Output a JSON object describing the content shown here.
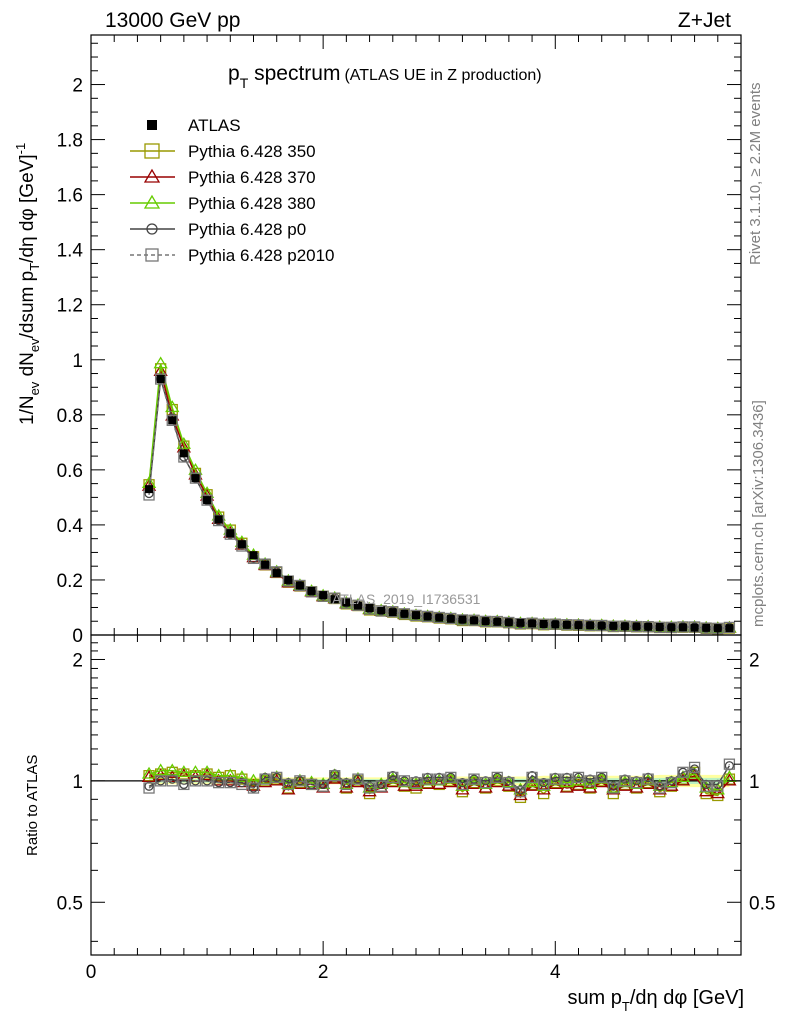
{
  "header": {
    "left": "13000 GeV pp",
    "right": "Z+Jet"
  },
  "side_labels": {
    "rivet": "Rivet 3.1.10, ≥ 2.2M events",
    "mcplots": "mcplots.cern.ch [arXiv:1306.3436]"
  },
  "watermark": "ATLAS_2019_I1736531",
  "chart_data": [
    {
      "type": "line",
      "title_main": "p",
      "title_sub": "T",
      "title_rest": " spectrum",
      "title_note": "(ATLAS UE in Z production)",
      "ylabel": "1/N_ev dN_ev/dsum p_T/dη dφ [GeV]^-1",
      "ylabel_parts": [
        "1/N",
        "ev",
        " dN",
        "ev",
        "/dsum p",
        "T",
        "/dη dφ  [GeV]",
        "-1"
      ],
      "xlim": [
        0,
        5.6
      ],
      "ylim": [
        0,
        2.18
      ],
      "yticks": [
        0,
        0.2,
        0.4,
        0.6,
        0.8,
        1,
        1.2,
        1.4,
        1.6,
        1.8,
        2
      ],
      "ytick_labels": [
        "0",
        "0.2",
        "0.4",
        "0.6",
        "0.8",
        "1",
        "1.2",
        "1.4",
        "1.6",
        "1.8",
        "2"
      ],
      "x": [
        0.5,
        0.6,
        0.7,
        0.8,
        0.9,
        1.0,
        1.1,
        1.2,
        1.3,
        1.4,
        1.5,
        1.6,
        1.7,
        1.8,
        1.9,
        2.0,
        2.1,
        2.2,
        2.3,
        2.4,
        2.5,
        2.6,
        2.7,
        2.8,
        2.9,
        3.0,
        3.1,
        3.2,
        3.3,
        3.4,
        3.5,
        3.6,
        3.7,
        3.8,
        3.9,
        4.0,
        4.1,
        4.2,
        4.3,
        4.4,
        4.5,
        4.6,
        4.7,
        4.8,
        4.9,
        5.0,
        5.1,
        5.2,
        5.3,
        5.4,
        5.5
      ],
      "ref_values": [
        0.53,
        0.93,
        0.78,
        0.66,
        0.57,
        0.49,
        0.42,
        0.37,
        0.33,
        0.29,
        0.255,
        0.225,
        0.2,
        0.18,
        0.16,
        0.145,
        0.13,
        0.118,
        0.107,
        0.098,
        0.09,
        0.083,
        0.077,
        0.072,
        0.067,
        0.063,
        0.059,
        0.056,
        0.053,
        0.05,
        0.048,
        0.046,
        0.044,
        0.042,
        0.04,
        0.039,
        0.037,
        0.036,
        0.035,
        0.034,
        0.033,
        0.032,
        0.031,
        0.03,
        0.029,
        0.028,
        0.028,
        0.027,
        0.026,
        0.025,
        0.025
      ],
      "legend": {
        "reference": "ATLAS",
        "series": [
          "Pythia 6.428 350",
          "Pythia 6.428 370",
          "Pythia 6.428 380",
          "Pythia 6.428 p0",
          "Pythia 6.428 p2010"
        ],
        "placement": "top-left"
      }
    },
    {
      "type": "line",
      "ylabel": "Ratio to ATLAS",
      "xlabel_parts": [
        "sum p",
        "T",
        "/dη dφ [GeV]"
      ],
      "xlim": [
        0,
        5.6
      ],
      "ylim": [
        0.37,
        2.3
      ],
      "yticks": [
        0.5,
        1,
        2
      ],
      "ytick_labels": [
        "0.5",
        "1",
        "2"
      ],
      "xticks": [
        0,
        2,
        4
      ],
      "xtick_labels": [
        "0",
        "2",
        "4"
      ],
      "series": [
        {
          "name": "Pythia 6.428 350",
          "color": "#999900",
          "marker": "square",
          "values": [
            1.03,
            1.04,
            1.05,
            1.04,
            1.03,
            1.04,
            1.02,
            1.03,
            1.01,
            0.98,
            1.0,
            1.01,
            0.96,
            0.99,
            0.98,
            0.97,
            1.02,
            0.96,
            1.0,
            0.93,
            0.97,
            1.0,
            0.97,
            0.96,
            0.99,
            0.98,
            1.0,
            0.94,
            0.99,
            0.96,
            1.0,
            0.97,
            0.91,
            0.98,
            0.93,
            0.99,
            0.97,
            0.98,
            0.96,
            1.0,
            0.93,
            0.98,
            0.96,
            0.99,
            0.94,
            0.97,
            1.01,
            1.05,
            0.93,
            0.92,
            1.01
          ]
        },
        {
          "name": "Pythia 6.428 370",
          "color": "#990000",
          "marker": "triangle",
          "values": [
            1.02,
            1.03,
            1.02,
            1.03,
            1.02,
            1.03,
            1.0,
            1.0,
            0.99,
            0.97,
            0.99,
            1.0,
            0.95,
            0.98,
            0.98,
            0.96,
            1.01,
            0.96,
            0.99,
            0.94,
            0.96,
            0.99,
            0.97,
            0.97,
            0.98,
            0.98,
            0.99,
            0.95,
            0.98,
            0.96,
            0.99,
            0.97,
            0.92,
            0.97,
            0.95,
            0.98,
            0.96,
            0.97,
            0.96,
            0.99,
            0.95,
            0.97,
            0.96,
            0.98,
            0.95,
            0.97,
            1.0,
            1.03,
            0.94,
            0.93,
            1.0
          ]
        },
        {
          "name": "Pythia 6.428 380",
          "color": "#66cc00",
          "marker": "triangle",
          "values": [
            1.04,
            1.06,
            1.06,
            1.05,
            1.05,
            1.05,
            1.03,
            1.03,
            1.02,
            1.0,
            1.01,
            1.02,
            0.98,
            1.0,
            0.99,
            0.98,
            1.03,
            0.98,
            1.01,
            0.96,
            0.98,
            1.01,
            0.99,
            0.98,
            1.0,
            1.0,
            1.01,
            0.97,
            1.0,
            0.98,
            1.01,
            0.99,
            0.95,
            0.99,
            0.97,
            1.0,
            0.99,
            1.0,
            0.98,
            1.01,
            0.96,
            0.99,
            0.98,
            1.0,
            0.97,
            0.99,
            1.02,
            1.04,
            0.96,
            0.95,
            1.02
          ]
        },
        {
          "name": "Pythia 6.428 p0",
          "color": "#444444",
          "marker": "circle",
          "values": [
            0.97,
            1.0,
            1.01,
            0.98,
            1.0,
            1.0,
            0.99,
            0.99,
            0.99,
            0.96,
            1.02,
            1.02,
            0.99,
            1.0,
            0.98,
            0.98,
            1.04,
            0.99,
            1.01,
            0.97,
            0.98,
            1.03,
            1.0,
            1.0,
            1.02,
            1.02,
            1.02,
            0.99,
            1.01,
            1.0,
            1.02,
            1.0,
            0.95,
            1.03,
            0.99,
            1.02,
            1.02,
            1.02,
            1.01,
            1.02,
            0.97,
            1.01,
            1.0,
            1.02,
            0.97,
            1.0,
            1.05,
            1.07,
            0.98,
            0.98,
            1.09
          ]
        },
        {
          "name": "Pythia 6.428 p2010",
          "color": "#777777",
          "marker": "square-dashed",
          "values": [
            0.96,
            1.0,
            1.0,
            0.98,
            1.0,
            1.0,
            0.99,
            0.99,
            0.98,
            0.96,
            1.01,
            1.02,
            0.98,
            1.0,
            0.98,
            0.97,
            1.03,
            0.98,
            1.01,
            0.96,
            0.97,
            1.02,
            1.0,
            0.99,
            1.01,
            1.01,
            1.02,
            0.98,
            1.01,
            0.99,
            1.02,
            0.99,
            0.94,
            1.02,
            0.98,
            1.01,
            1.01,
            1.02,
            1.0,
            1.02,
            0.96,
            1.0,
            0.99,
            1.01,
            0.96,
            0.99,
            1.05,
            1.08,
            0.97,
            0.97,
            1.1
          ]
        }
      ],
      "band_halfwidth": [
        0.02,
        0.02,
        0.02,
        0.02,
        0.02,
        0.02,
        0.02,
        0.02,
        0.02,
        0.02,
        0.02,
        0.02,
        0.02,
        0.02,
        0.02,
        0.02,
        0.02,
        0.02,
        0.02,
        0.02,
        0.02,
        0.02,
        0.02,
        0.02,
        0.02,
        0.02,
        0.025,
        0.025,
        0.025,
        0.025,
        0.025,
        0.025,
        0.025,
        0.025,
        0.03,
        0.03,
        0.03,
        0.03,
        0.03,
        0.03,
        0.03,
        0.03,
        0.03,
        0.03,
        0.035,
        0.035,
        0.035,
        0.035,
        0.035,
        0.035,
        0.035
      ]
    }
  ]
}
